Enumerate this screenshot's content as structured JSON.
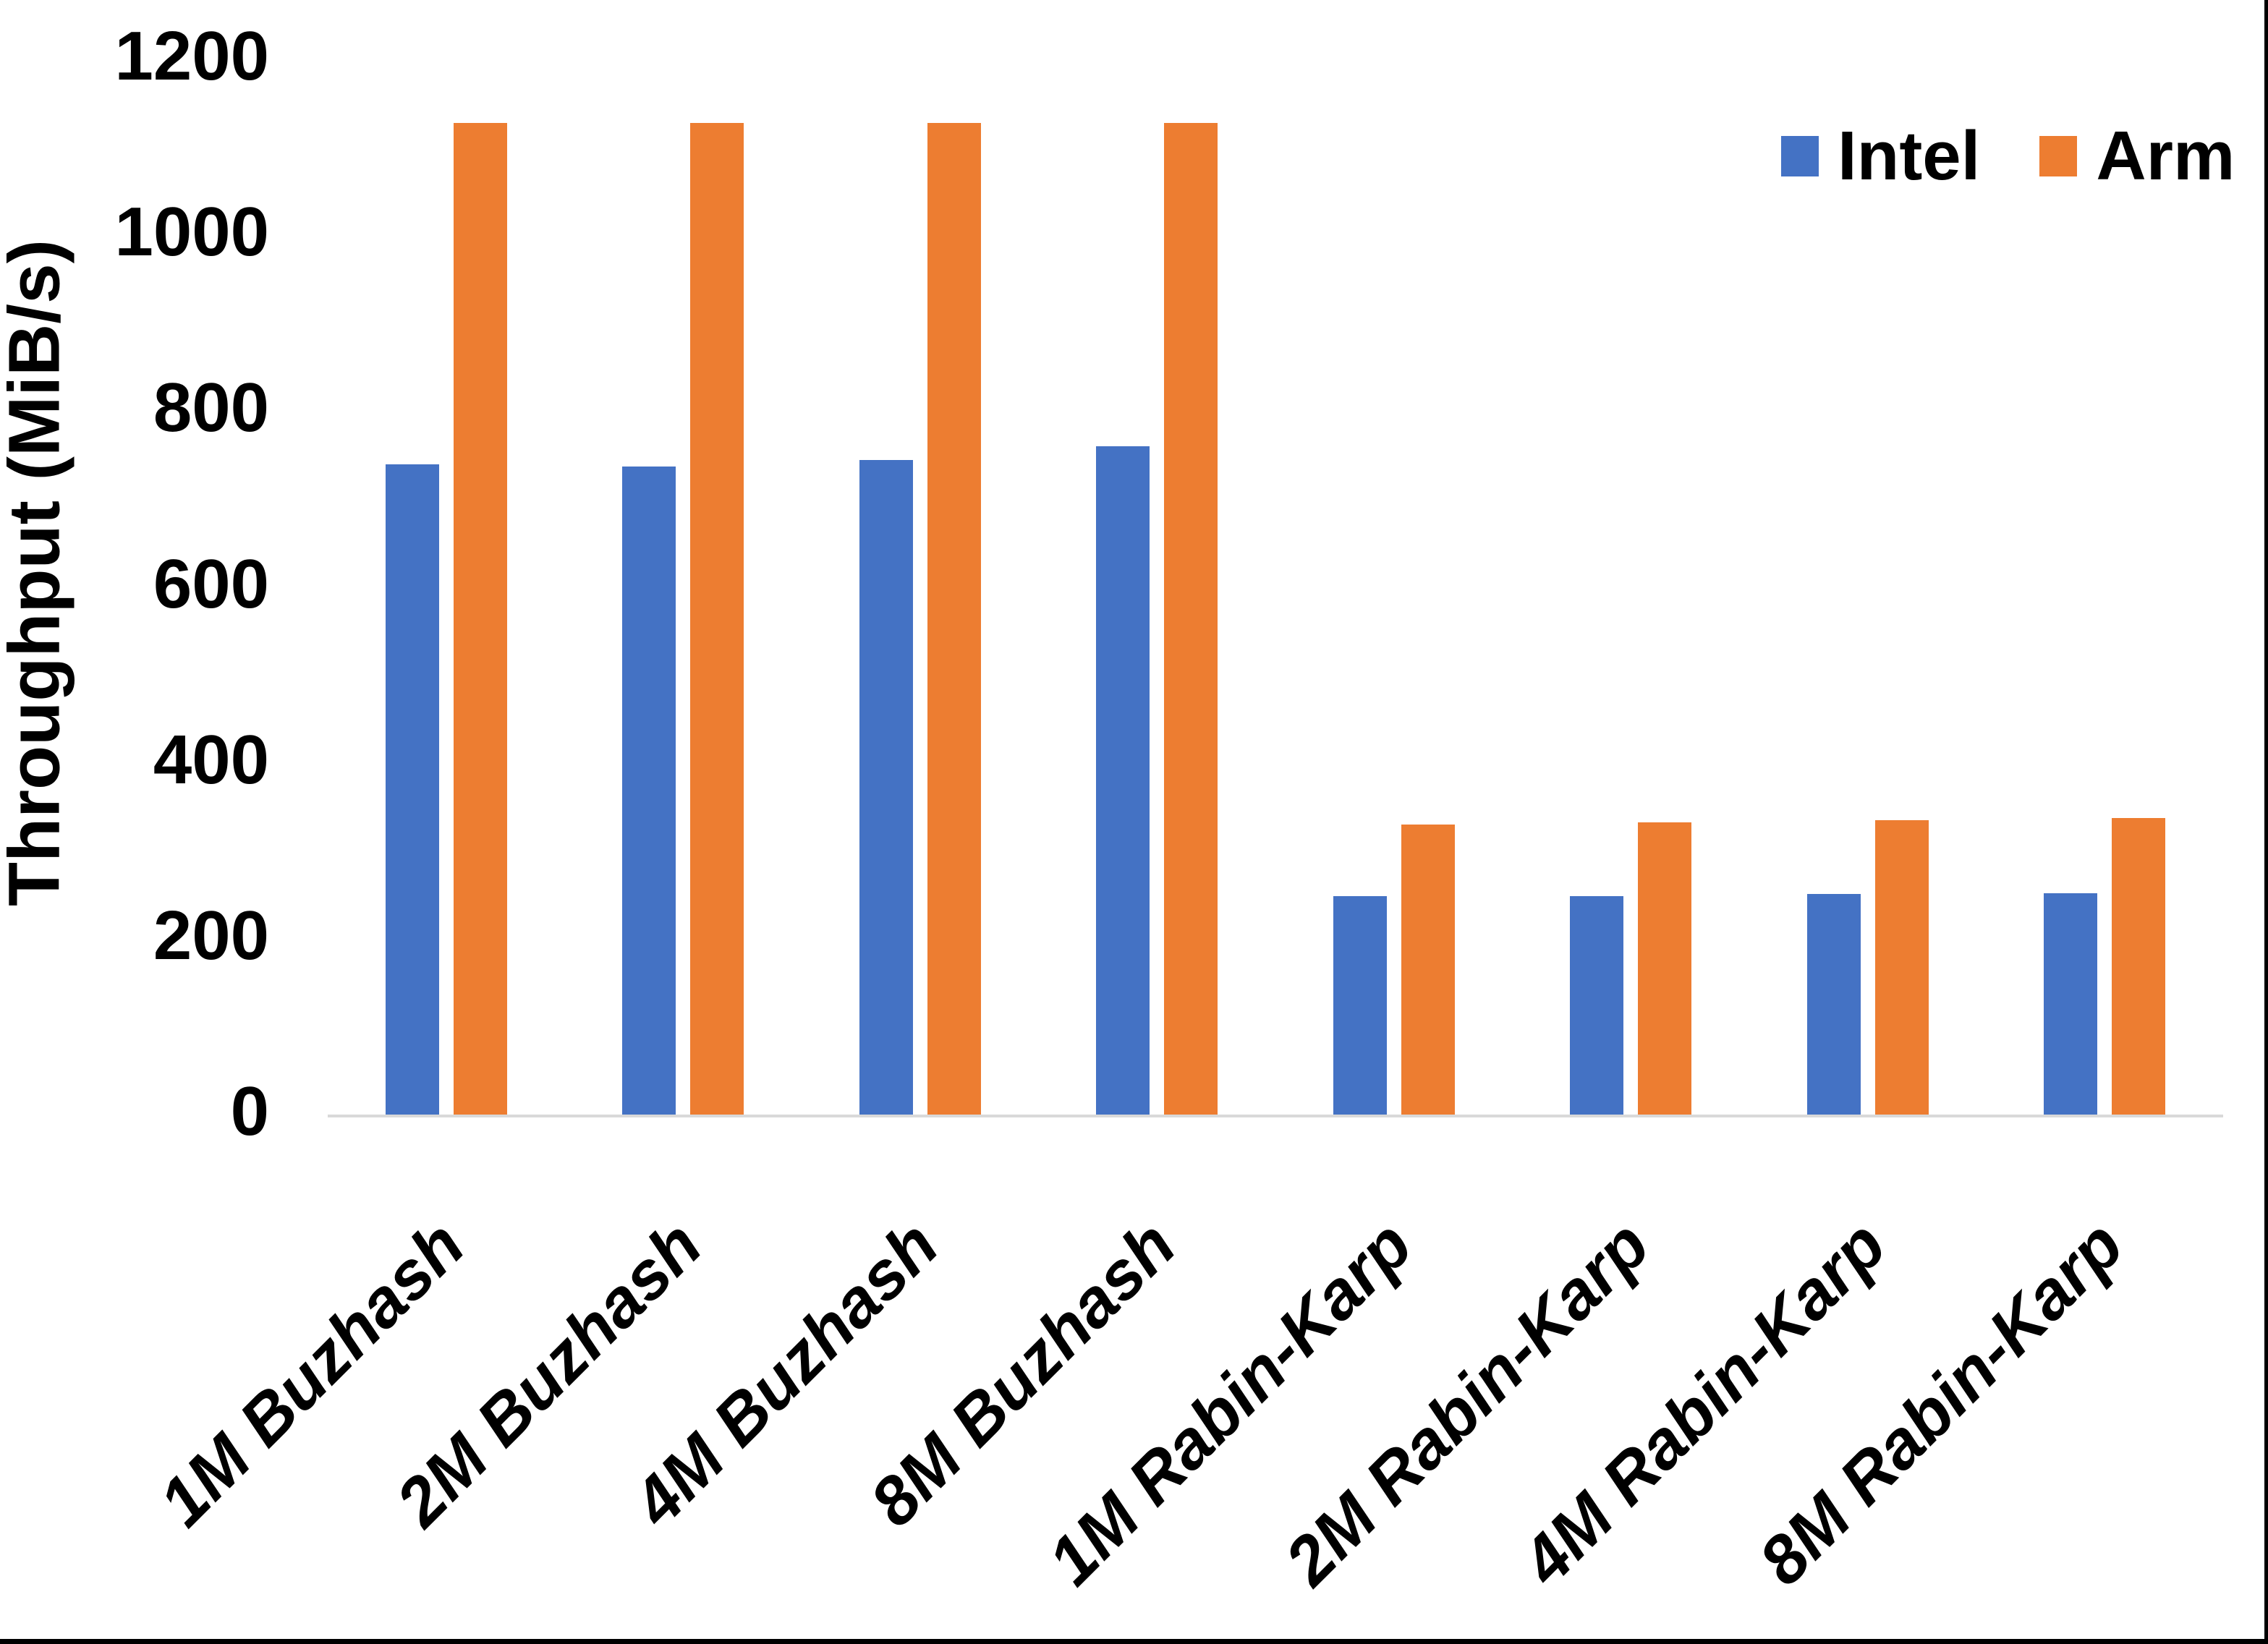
{
  "chart_data": {
    "type": "bar",
    "title": "",
    "xlabel": "",
    "ylabel": "Throughput (MiB/s)",
    "ylim": [
      0,
      1200
    ],
    "yticks": [
      0,
      200,
      400,
      600,
      800,
      1000,
      1200
    ],
    "grid": false,
    "legend_position": "top-right",
    "categories": [
      "1M Buzhash",
      "2M Buzhash",
      "4M Buzhash",
      "8M Buzhash",
      "1M Rabin-Karp",
      "2M Rabin-Karp",
      "4M Rabin-Karp",
      "8M Rabin-Karp"
    ],
    "series": [
      {
        "name": "Intel",
        "color": "#4472C4",
        "values": [
          739,
          737,
          744,
          760,
          248,
          248,
          251,
          252
        ]
      },
      {
        "name": "Arm",
        "color": "#ED7D31",
        "values": [
          1128,
          1128,
          1128,
          1128,
          330,
          332,
          335,
          337
        ]
      }
    ],
    "axis_line_color": "#D9D9D9",
    "text_color": "#000000",
    "frame_color": "#000000"
  }
}
